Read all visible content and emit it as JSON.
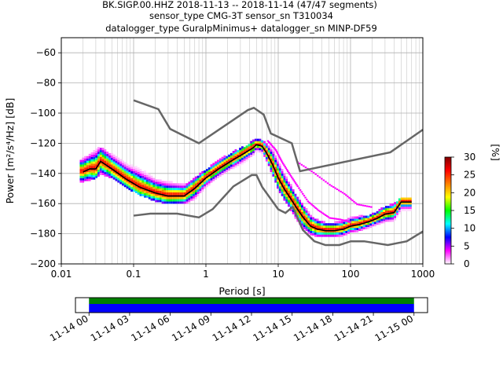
{
  "header": {
    "line1": "BK.SIGP.00.HHZ   2018-11-13 -- 2018-11-14  (47/47 segments)",
    "line2": "sensor_type CMG-3T sensor_sn T310034",
    "line3": "datalogger_type GuralpMinimus+ datalogger_sn MINP-DF59"
  },
  "chart_data": [
    {
      "type": "heatmap",
      "title": "",
      "xlabel": "Period [s]",
      "ylabel": "Power [m²/s⁴/Hz] [dB]",
      "x_scale": "log",
      "xlim": [
        0.01,
        1000
      ],
      "ylim": [
        -200,
        -50
      ],
      "grid": true,
      "x_ticks": [
        {
          "value": 0.01,
          "label": "0.01"
        },
        {
          "value": 0.1,
          "label": "0.1"
        },
        {
          "value": 1,
          "label": "1"
        },
        {
          "value": 10,
          "label": "10"
        },
        {
          "value": 100,
          "label": "100"
        },
        {
          "value": 1000,
          "label": "1000"
        }
      ],
      "y_ticks": [
        {
          "value": -60,
          "label": "−60"
        },
        {
          "value": -80,
          "label": "−80"
        },
        {
          "value": -100,
          "label": "−100"
        },
        {
          "value": -120,
          "label": "−120"
        },
        {
          "value": -140,
          "label": "−140"
        },
        {
          "value": -160,
          "label": "−160"
        },
        {
          "value": -180,
          "label": "−180"
        },
        {
          "value": -200,
          "label": "−200"
        }
      ],
      "colorbar": {
        "label": "[%]",
        "range": [
          0,
          30
        ],
        "ticks": [
          {
            "value": 0,
            "label": "0"
          },
          {
            "value": 5,
            "label": "5"
          },
          {
            "value": 10,
            "label": "10"
          },
          {
            "value": 15,
            "label": "15"
          },
          {
            "value": 20,
            "label": "20"
          },
          {
            "value": 25,
            "label": "25"
          },
          {
            "value": 30,
            "label": "30"
          }
        ],
        "colors": [
          "#ffffff",
          "#ff00ff",
          "#0000ff",
          "#00ffff",
          "#00ff00",
          "#ffff00",
          "#ff8000",
          "#ff0000",
          "#800000"
        ]
      },
      "noise_model_high": {
        "x": [
          0.1,
          0.22,
          0.32,
          0.8,
          3.8,
          4.6,
          6.3,
          7.9,
          15.4,
          20,
          354.8,
          1000
        ],
        "y": [
          -91.5,
          -97.4,
          -110.5,
          -120,
          -98,
          -96.5,
          -101,
          -113.5,
          -120,
          -138.5,
          -126,
          -111
        ]
      },
      "noise_model_low": {
        "x": [
          0.1,
          0.17,
          0.4,
          0.8,
          1.24,
          2.4,
          4.3,
          5,
          6,
          10,
          12.6,
          15.9,
          21.9,
          31.6,
          45,
          70,
          101,
          154,
          328,
          600,
          1000
        ],
        "y": [
          -168,
          -166.7,
          -166.7,
          -169.2,
          -163.7,
          -148.6,
          -141.1,
          -141.1,
          -149,
          -163.8,
          -166.2,
          -162.1,
          -177.5,
          -185,
          -187.5,
          -187.5,
          -185,
          -185,
          -187.5,
          -185,
          -178.5
        ]
      },
      "mean_curve": {
        "x": [
          0.02,
          0.025,
          0.03,
          0.035,
          0.05,
          0.08,
          0.12,
          0.2,
          0.3,
          0.5,
          0.7,
          1,
          1.5,
          2.2,
          3.3,
          4.5,
          5,
          6,
          7,
          8.5,
          10,
          12,
          15,
          18,
          22,
          28,
          35,
          45,
          60,
          80,
          100,
          130,
          180,
          230,
          300,
          400,
          500,
          600,
          700
        ],
        "y": [
          -139,
          -137,
          -137,
          -132,
          -137,
          -144,
          -149,
          -153,
          -155,
          -155,
          -150,
          -143,
          -137,
          -132,
          -127,
          -123,
          -121,
          -122,
          -127,
          -135,
          -143,
          -150,
          -157,
          -163,
          -169,
          -175,
          -177,
          -178,
          -178,
          -177,
          -175,
          -174,
          -172,
          -170,
          -167,
          -166,
          -159,
          -159,
          -159
        ]
      },
      "density_band": {
        "x": [
          0.018,
          0.025,
          0.03,
          0.035,
          0.05,
          0.08,
          0.12,
          0.2,
          0.3,
          0.5,
          0.7,
          1,
          1.5,
          2.2,
          3.3,
          4.5,
          5,
          6,
          7,
          8.5,
          10,
          12,
          15,
          18,
          22,
          28,
          35,
          45,
          60,
          80,
          100,
          130,
          180,
          230,
          300,
          400,
          500,
          600,
          700
        ],
        "y_top": [
          -132,
          -128,
          -124,
          -123,
          -128,
          -134,
          -137,
          -144,
          -146,
          -148,
          -144,
          -138,
          -132,
          -127,
          -123,
          -119,
          -118,
          -118,
          -121,
          -125,
          -132,
          -140,
          -148,
          -155,
          -161,
          -168,
          -171,
          -173,
          -173,
          -172,
          -170,
          -169,
          -168,
          -166,
          -162,
          -161,
          -156,
          -156,
          -156
        ],
        "y_bottom": [
          -146,
          -144,
          -143,
          -140,
          -143,
          -149,
          -154,
          -158,
          -160,
          -160,
          -157,
          -149,
          -142,
          -137,
          -133,
          -128,
          -125,
          -126,
          -132,
          -141,
          -150,
          -157,
          -164,
          -171,
          -176,
          -180,
          -182,
          -182,
          -182,
          -181,
          -179,
          -178,
          -176,
          -174,
          -172,
          -171,
          -165,
          -165,
          -165
        ]
      },
      "outlier_trail": {
        "x": [
          7,
          9,
          11,
          14,
          18,
          25,
          35,
          50,
          70,
          100
        ],
        "y": [
          -118,
          -124,
          -132,
          -140,
          -148,
          -158,
          -164,
          -169,
          -170,
          -172
        ]
      },
      "outlier_trail_right": {
        "x": [
          18,
          30,
          50,
          80,
          120,
          200
        ],
        "y": [
          -132,
          -139,
          -147,
          -153,
          -160,
          -162
        ]
      }
    },
    {
      "type": "bar",
      "title": "",
      "xlabel": "",
      "ylabel": "",
      "xlim": [
        "2018-11-13 23:00",
        "2018-11-15 01:00"
      ],
      "data_coverage": {
        "start": "2018-11-14 00:00",
        "end": "2018-11-15 00:00",
        "color": "#0000ff"
      },
      "gap_overlaps": {
        "start": "2018-11-14 00:00",
        "end": "2018-11-15 00:00",
        "color": "#008000"
      },
      "x_ticks": [
        {
          "value": "2018-11-14 00:00",
          "label": "11-14 00"
        },
        {
          "value": "2018-11-14 03:00",
          "label": "11-14 03"
        },
        {
          "value": "2018-11-14 06:00",
          "label": "11-14 06"
        },
        {
          "value": "2018-11-14 09:00",
          "label": "11-14 09"
        },
        {
          "value": "2018-11-14 12:00",
          "label": "11-14 12"
        },
        {
          "value": "2018-11-14 15:00",
          "label": "11-14 15"
        },
        {
          "value": "2018-11-14 18:00",
          "label": "11-14 18"
        },
        {
          "value": "2018-11-14 21:00",
          "label": "11-14 21"
        },
        {
          "value": "2018-11-15 00:00",
          "label": "11-15 00"
        }
      ]
    }
  ]
}
